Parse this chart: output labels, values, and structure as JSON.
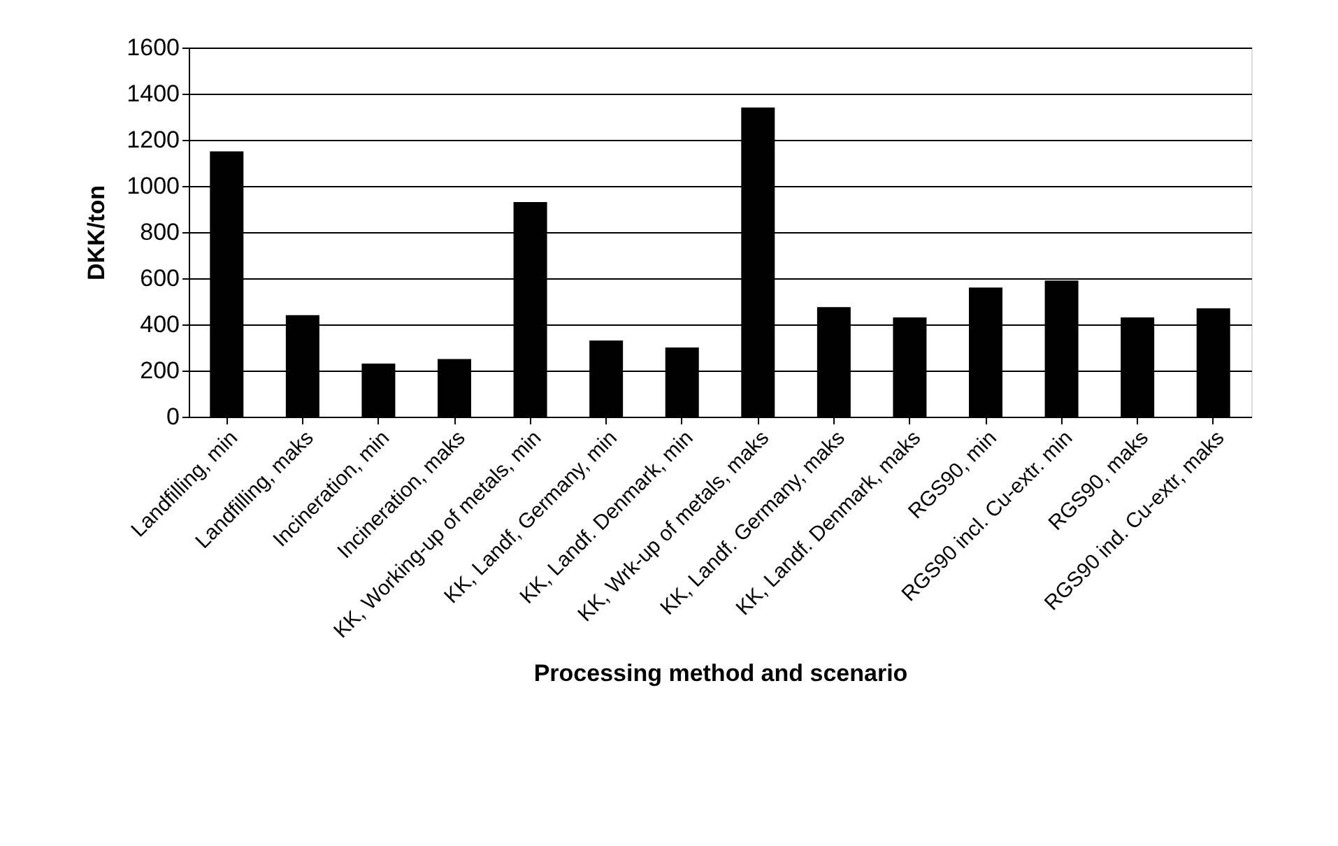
{
  "chart_data": {
    "type": "bar",
    "xlabel": "Processing method and scenario",
    "ylabel": "DKK/ton",
    "categories": [
      "Landfilling, min",
      "Landfilling, maks",
      "Incineration, min",
      "Incineration, maks",
      "KK, Working-up of metals, min",
      "KK, Landf, Germany, min",
      "KK, Landf. Denmark, min",
      "KK, Wrk-up of metals, maks",
      "KK, Landf. Germany, maks",
      "KK, Landf. Denmark, maks",
      "RGS90, min",
      "RGS90 incl. Cu-extr. min",
      "RGS90, maks",
      "RGS90 ind. Cu-extr, maks"
    ],
    "values": [
      1150,
      440,
      230,
      250,
      930,
      330,
      300,
      1340,
      475,
      430,
      560,
      590,
      430,
      470
    ],
    "color": "#000000",
    "ylim": [
      0,
      1600
    ],
    "yticks": [
      0,
      200,
      400,
      600,
      800,
      1000,
      1200,
      1400,
      1600
    ],
    "grid": "y"
  }
}
